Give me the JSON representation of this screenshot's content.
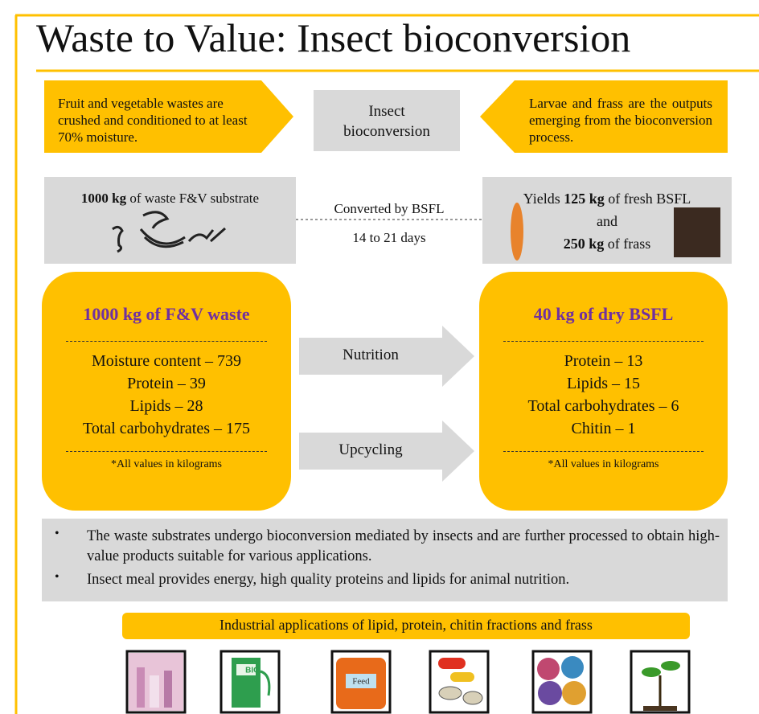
{
  "title": "Waste to Value: Insect bioconversion",
  "top_row": {
    "left": "Fruit and vegetable wastes are crushed and conditioned to at least 70% moisture.",
    "center": [
      "Insect",
      "bioconversion"
    ],
    "right": "Larvae and frass are the outputs emerging from the bioconversion process."
  },
  "process": {
    "input": {
      "amount": "1000 kg",
      "text": "of waste F&V substrate"
    },
    "converter": "Converted by BSFL",
    "duration": "14 to 21 days",
    "output": {
      "line1": [
        "Yields",
        "125 kg",
        "of fresh BSFL"
      ],
      "line2": "and",
      "line3": [
        "250 kg",
        "of frass"
      ]
    }
  },
  "waste_box": {
    "title": "1000 kg of F&V waste",
    "items": [
      "Moisture content – 739",
      "Protein – 39",
      "Lipids – 28",
      "Total carbohydrates – 175"
    ],
    "note": "*All values in kilograms"
  },
  "arrows": [
    "Nutrition",
    "Upcycling"
  ],
  "larvae_box": {
    "title": "40 kg of dry BSFL",
    "items": [
      "Protein – 13",
      "Lipids – 15",
      "Total carbohydrates – 6",
      "Chitin – 1"
    ],
    "note": "*All values in kilograms"
  },
  "bullets": [
    "The waste substrates undergo bioconversion mediated by insects and are further processed to obtain high-value products suitable for various applications.",
    "Insect meal provides energy, high quality proteins and lipids for animal nutrition."
  ],
  "applications": {
    "title": "Industrial applications of lipid, protein, chitin fractions and frass",
    "fuel_label": "BIO",
    "feed_label": "Feed"
  }
}
